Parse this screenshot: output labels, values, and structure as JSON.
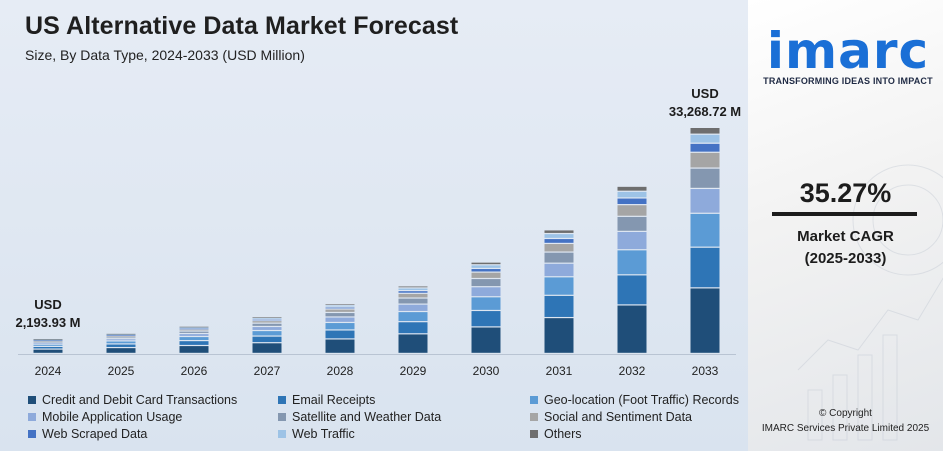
{
  "header": {
    "title": "US Alternative Data Market Forecast",
    "subtitle": "Size, By Data Type, 2024-2033 (USD Million)"
  },
  "chart_data": {
    "type": "bar",
    "stacked": true,
    "categories": [
      "2024",
      "2025",
      "2026",
      "2027",
      "2028",
      "2029",
      "2030",
      "2031",
      "2032",
      "2033"
    ],
    "totals": [
      2193.93,
      2966,
      4013,
      5430,
      7347,
      9940,
      13447,
      18191,
      24607,
      33268.72
    ],
    "series": [
      {
        "name": "Credit and Debit Card Transactions",
        "color": "#1f4e79",
        "share": 0.29
      },
      {
        "name": "Email Receipts",
        "color": "#2e75b6",
        "share": 0.18
      },
      {
        "name": "Geo-location (Foot Traffic) Records",
        "color": "#5b9bd5",
        "share": 0.15
      },
      {
        "name": "Mobile Application Usage",
        "color": "#8eaadb",
        "share": 0.11
      },
      {
        "name": "Satellite and Weather Data",
        "color": "#8497b0",
        "share": 0.09
      },
      {
        "name": "Social and Sentiment Data",
        "color": "#a5a5a5",
        "share": 0.07
      },
      {
        "name": "Web Scraped Data",
        "color": "#4472c4",
        "share": 0.04
      },
      {
        "name": "Web Traffic",
        "color": "#9dc3e6",
        "share": 0.04
      },
      {
        "name": "Others",
        "color": "#6e6e6e",
        "share": 0.03
      }
    ],
    "annotations": [
      {
        "category": "2024",
        "line1": "USD",
        "line2": "2,193.93 M"
      },
      {
        "category": "2033",
        "line1": "USD",
        "line2": "33,268.72 M"
      }
    ],
    "legend_position": "bottom",
    "grid": false
  },
  "legend": {
    "items": [
      "Credit and Debit Card Transactions",
      "Email Receipts",
      "Geo-location (Foot Traffic) Records",
      "Mobile Application Usage",
      "Satellite and Weather Data",
      "Social and Sentiment Data",
      "Web Scraped Data",
      "Web Traffic",
      "Others"
    ]
  },
  "brand": {
    "logo_text": "imarc",
    "tagline": "TRANSFORMING IDEAS INTO IMPACT",
    "accent": "#1a6fd6"
  },
  "cagr": {
    "value": "35.27%",
    "label_line1": "Market CAGR",
    "label_line2": "(2025-2033)"
  },
  "footer": {
    "copyright_line1": "© Copyright",
    "copyright_line2": "IMARC Services Private Limited 2025"
  }
}
